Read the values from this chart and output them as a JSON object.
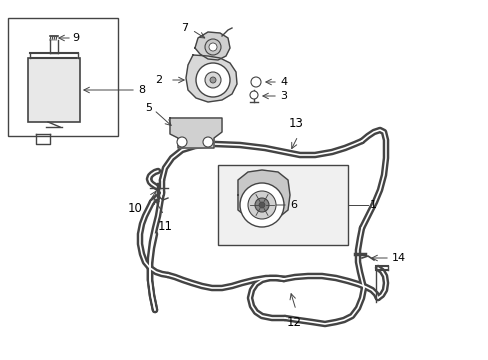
{
  "background_color": "#ffffff",
  "line_color": "#444444",
  "fig_w": 4.89,
  "fig_h": 3.6,
  "dpi": 100
}
